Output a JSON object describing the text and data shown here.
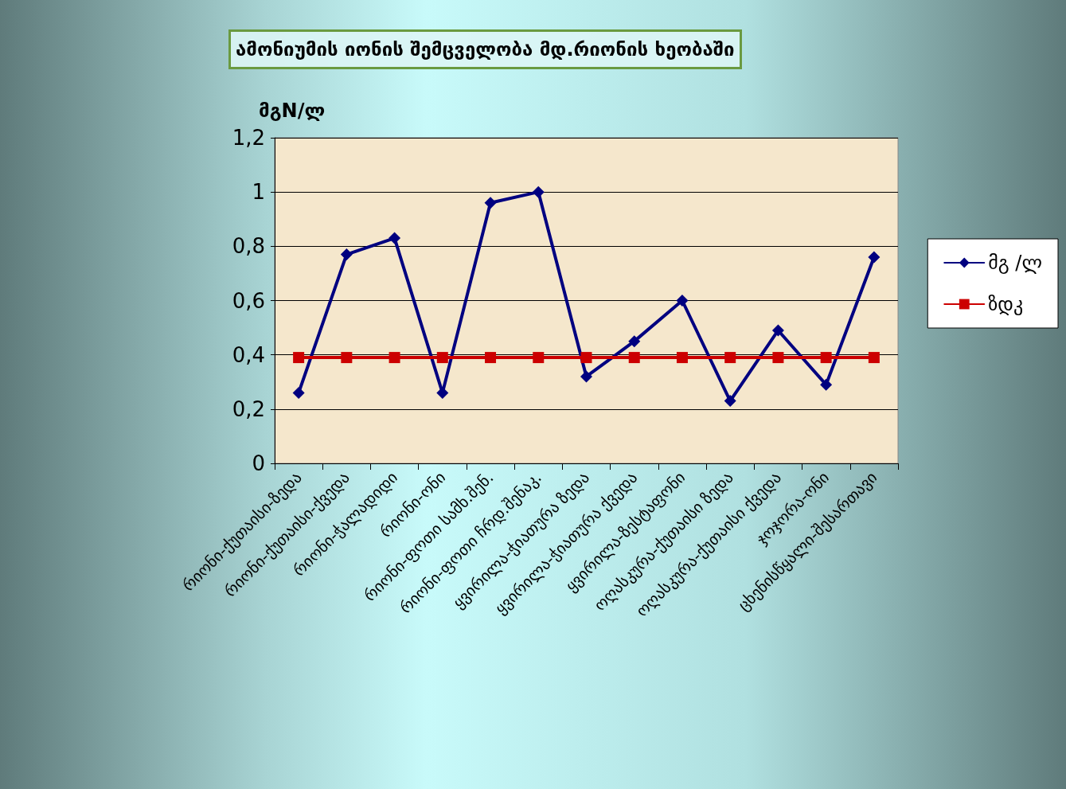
{
  "chart_data": {
    "type": "line",
    "title": "ამონიუმის იონის შემცველობა მდ.რიონის ხეობაში",
    "ylabel": "მგN/ლ",
    "categories": [
      "რიონი-ქუთაისი-ზედა",
      "რიონი-ქუთაისი-ქვედა",
      "რიონი-ჭალადიდი",
      "რიონი-ონი",
      "რიონი-ფოთი სამხ.შენ.",
      "რიონი-ფოთი ჩრდ.შენაკ.",
      "ყვირილა-ჭიათურა ზედა",
      "ყვირილა-ჭიათურა ქვედა",
      "ყვირილა-ზესტაფონი",
      "ოღასკურა-ქუთაისი ზედა",
      "ოღასკურა-ქუთაისი ქვედა",
      "ჯოჯორა-ონი",
      "ცხენისწყალი-შესართავი"
    ],
    "series": [
      {
        "name": "მგ /ლ",
        "color": "#000080",
        "marker": "diamond",
        "values": [
          0.26,
          0.77,
          0.83,
          0.26,
          0.96,
          1.0,
          0.32,
          0.45,
          0.6,
          0.23,
          0.49,
          0.29,
          0.76
        ]
      },
      {
        "name": "ზდკ",
        "color": "#cc0000",
        "marker": "square",
        "values": [
          0.39,
          0.39,
          0.39,
          0.39,
          0.39,
          0.39,
          0.39,
          0.39,
          0.39,
          0.39,
          0.39,
          0.39,
          0.39
        ]
      }
    ],
    "ylim": [
      0,
      1.2
    ],
    "yticks": [
      0,
      {
        "value": 0.2,
        "label": "0,2"
      },
      {
        "value": 0.4,
        "label": "0,4"
      },
      {
        "value": 0.6,
        "label": "0,6"
      },
      {
        "value": 0.8,
        "label": "0,8"
      },
      1,
      {
        "value": 1.2,
        "label": "1,2"
      }
    ],
    "grid": "y",
    "legend": "right",
    "line_style": "solid"
  }
}
